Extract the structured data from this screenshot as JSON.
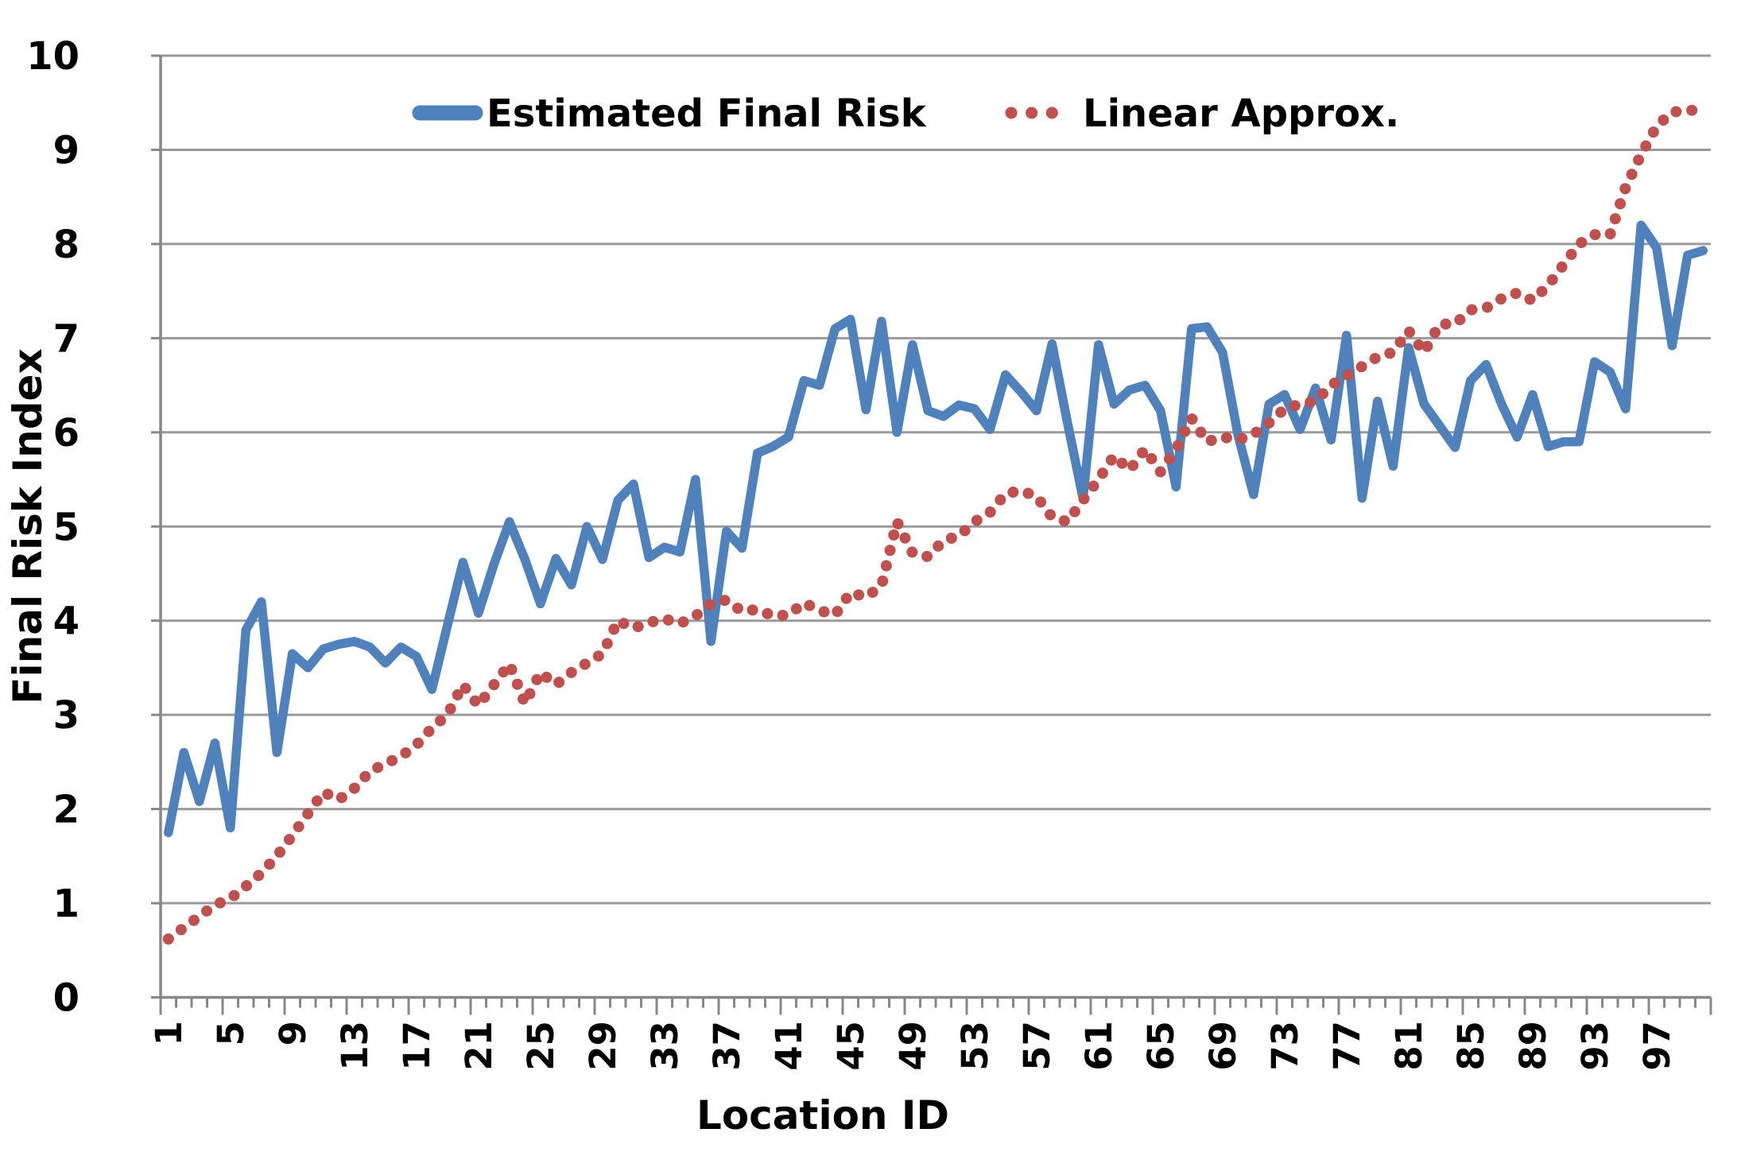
{
  "chart_data": {
    "type": "line",
    "title": "",
    "xlabel": "Location ID",
    "ylabel": "Final Risk Index",
    "x_range": [
      1,
      100
    ],
    "ylim": [
      0,
      10
    ],
    "grid": "horizontal",
    "legend_position": "top-center-inside",
    "y_ticks": [
      "0",
      "1",
      "2",
      "3",
      "4",
      "5",
      "6",
      "7",
      "8",
      "9",
      "10"
    ],
    "x_tick_labels": [
      "1",
      "5",
      "9",
      "13",
      "17",
      "21",
      "25",
      "29",
      "33",
      "37",
      "41",
      "45",
      "49",
      "53",
      "57",
      "61",
      "65",
      "69",
      "73",
      "77",
      "81",
      "85",
      "89",
      "93",
      "97"
    ],
    "x_tick_step": 4,
    "categories": [
      1,
      2,
      3,
      4,
      5,
      6,
      7,
      8,
      9,
      10,
      11,
      12,
      13,
      14,
      15,
      16,
      17,
      18,
      19,
      20,
      21,
      22,
      23,
      24,
      25,
      26,
      27,
      28,
      29,
      30,
      31,
      32,
      33,
      34,
      35,
      36,
      37,
      38,
      39,
      40,
      41,
      42,
      43,
      44,
      45,
      46,
      47,
      48,
      49,
      50,
      51,
      52,
      53,
      54,
      55,
      56,
      57,
      58,
      59,
      60,
      61,
      62,
      63,
      64,
      65,
      66,
      67,
      68,
      69,
      70,
      71,
      72,
      73,
      74,
      75,
      76,
      77,
      78,
      79,
      80,
      81,
      82,
      83,
      84,
      85,
      86,
      87,
      88,
      89,
      90,
      91,
      92,
      93,
      94,
      95,
      96,
      97,
      98,
      99,
      100
    ],
    "series": [
      {
        "name": "Estimated Final Risk",
        "color": "#4F81BD",
        "style": "solid",
        "values": [
          1.75,
          2.6,
          2.08,
          2.7,
          1.8,
          3.9,
          4.2,
          2.6,
          3.65,
          3.5,
          3.7,
          3.75,
          3.78,
          3.72,
          3.55,
          3.72,
          3.62,
          3.27,
          3.95,
          4.62,
          4.08,
          4.6,
          5.05,
          4.65,
          4.18,
          4.66,
          4.38,
          5.0,
          4.65,
          5.28,
          5.45,
          4.67,
          4.78,
          4.73,
          5.5,
          3.78,
          4.95,
          4.77,
          5.78,
          5.85,
          5.95,
          6.55,
          6.5,
          7.1,
          7.2,
          6.24,
          7.18,
          6.0,
          6.93,
          6.23,
          6.17,
          6.29,
          6.25,
          6.03,
          6.61,
          6.43,
          6.23,
          6.94,
          6.1,
          5.3,
          6.93,
          6.3,
          6.45,
          6.5,
          6.23,
          5.42,
          7.1,
          7.12,
          6.85,
          5.97,
          5.34,
          6.3,
          6.4,
          6.03,
          6.47,
          5.92,
          7.03,
          5.3,
          6.33,
          5.64,
          6.9,
          6.3,
          6.07,
          5.84,
          6.55,
          6.72,
          6.3,
          5.95,
          6.4,
          5.85,
          5.9,
          5.9,
          6.75,
          6.64,
          6.25,
          8.2,
          7.96,
          6.92,
          7.88,
          7.93
        ]
      },
      {
        "name": "Linear Approx.",
        "color": "#C0504D",
        "style": "dotted",
        "values": [
          0.62,
          0.74,
          0.86,
          0.98,
          1.05,
          1.18,
          1.32,
          1.5,
          1.72,
          1.95,
          2.18,
          2.1,
          2.22,
          2.4,
          2.48,
          2.56,
          2.68,
          2.86,
          3.0,
          3.32,
          3.1,
          3.32,
          3.54,
          3.12,
          3.45,
          3.32,
          3.45,
          3.55,
          3.65,
          4.0,
          3.92,
          3.98,
          4.02,
          3.97,
          4.05,
          4.18,
          4.22,
          4.1,
          4.12,
          4.05,
          4.06,
          4.19,
          4.11,
          4.06,
          4.3,
          4.25,
          4.37,
          5.05,
          4.72,
          4.68,
          4.85,
          4.9,
          5.05,
          5.15,
          5.35,
          5.38,
          5.32,
          5.1,
          5.05,
          5.28,
          5.5,
          5.75,
          5.6,
          5.82,
          5.58,
          5.82,
          6.15,
          5.9,
          5.95,
          5.92,
          5.98,
          6.1,
          6.25,
          6.3,
          6.33,
          6.5,
          6.6,
          6.7,
          6.8,
          6.85,
          7.08,
          6.85,
          7.15,
          7.15,
          7.3,
          7.32,
          7.42,
          7.48,
          7.4,
          7.56,
          7.78,
          8.0,
          8.1,
          8.1,
          8.6,
          8.95,
          9.25,
          9.4,
          9.42,
          9.42
        ]
      }
    ]
  },
  "legend": {
    "items": [
      {
        "label": "Estimated Final Risk",
        "color": "#4F81BD",
        "style": "solid"
      },
      {
        "label": "Linear Approx.",
        "color": "#C0504D",
        "style": "dotted"
      }
    ]
  },
  "axes": {
    "x_title": "Location ID",
    "y_title": "Final Risk Index",
    "line_color": "#878787",
    "gridline_color": "#9a9a9a"
  }
}
